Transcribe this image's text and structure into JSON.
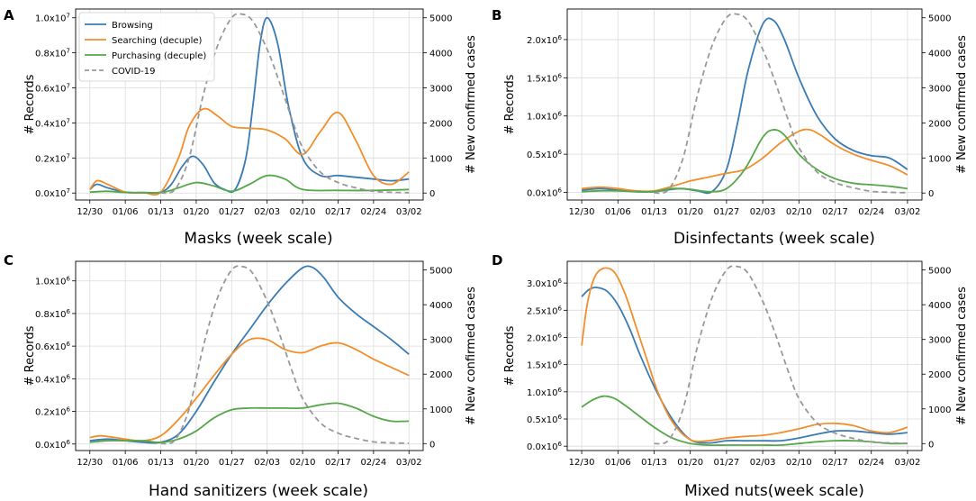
{
  "chart_data": [
    {
      "type": "line",
      "panel_letter": "A",
      "xlabel": "Masks (week scale)",
      "ylabel": "# Records",
      "y2label": "# New confirmed cases",
      "x_ticks": [
        "12/30",
        "01/06",
        "01/13",
        "01/20",
        "01/27",
        "02/03",
        "02/10",
        "02/17",
        "02/24",
        "03/02"
      ],
      "xlim": [
        -0.4,
        9.4
      ],
      "ylim": [
        -0.04,
        1.05
      ],
      "y_ticks": [
        "0.0x10^7",
        "0.2x10^7",
        "0.4x10^7",
        "0.6x10^7",
        "0.8x10^7",
        "1.0x10^7"
      ],
      "y_tick_values": [
        0.0,
        0.2,
        0.4,
        0.6,
        0.8,
        1.0
      ],
      "y_unit": "x10^7",
      "y2lim": [
        -200,
        5250
      ],
      "y2_ticks": [
        0,
        1000,
        2000,
        3000,
        4000,
        5000
      ],
      "legend": {
        "position": "top-left"
      },
      "grid": true,
      "series": [
        {
          "name": "Browsing",
          "color": "#3b7bb4",
          "axis": "left",
          "dash": false,
          "x": [
            0,
            0.2,
            0.5,
            1,
            1.5,
            2,
            2.3,
            2.6,
            2.9,
            3.2,
            3.5,
            3.8,
            4.1,
            4.4,
            4.6,
            4.8,
            5,
            5.3,
            5.6,
            6,
            6.5,
            7,
            7.5,
            8,
            8.5,
            9
          ],
          "y": [
            0.02,
            0.05,
            0.03,
            0.005,
            0.003,
            0.005,
            0.05,
            0.15,
            0.21,
            0.16,
            0.06,
            0.02,
            0.02,
            0.2,
            0.5,
            0.85,
            1.0,
            0.85,
            0.5,
            0.2,
            0.1,
            0.1,
            0.09,
            0.08,
            0.07,
            0.08
          ]
        },
        {
          "name": "Searching (decuple)",
          "color": "#f28e2b",
          "axis": "left",
          "dash": false,
          "x": [
            0,
            0.2,
            0.5,
            1,
            1.5,
            2,
            2.5,
            2.8,
            3.2,
            3.6,
            4,
            4.5,
            5,
            5.5,
            6,
            6.5,
            7,
            7.5,
            8,
            8.5,
            9
          ],
          "y": [
            0.02,
            0.07,
            0.05,
            0.005,
            0.003,
            0.005,
            0.2,
            0.38,
            0.48,
            0.44,
            0.38,
            0.37,
            0.36,
            0.31,
            0.22,
            0.35,
            0.46,
            0.3,
            0.1,
            0.05,
            0.12
          ]
        },
        {
          "name": "Purchasing (decuple)",
          "color": "#55a74a",
          "axis": "left",
          "dash": false,
          "x": [
            0,
            0.5,
            1,
            2,
            2.5,
            3,
            3.5,
            4,
            4.5,
            5,
            5.5,
            6,
            7,
            8,
            9
          ],
          "y": [
            0.005,
            0.01,
            0.003,
            0.003,
            0.03,
            0.06,
            0.04,
            0.01,
            0.05,
            0.1,
            0.08,
            0.02,
            0.015,
            0.015,
            0.02
          ]
        },
        {
          "name": "COVID-19",
          "color": "#999999",
          "axis": "right",
          "dash": true,
          "x": [
            2,
            2.4,
            2.8,
            3.2,
            3.6,
            4,
            4.3,
            4.6,
            5,
            5.3,
            5.7,
            6,
            6.5,
            7,
            7.5,
            8,
            8.5,
            9
          ],
          "y": [
            0,
            100,
            1000,
            2800,
            4200,
            5000,
            5100,
            4900,
            4100,
            3300,
            2100,
            1300,
            600,
            300,
            150,
            50,
            20,
            10
          ]
        }
      ]
    },
    {
      "type": "line",
      "panel_letter": "B",
      "xlabel": "Disinfectants (week scale)",
      "ylabel": "# Records",
      "y2label": "# New confirmed cases",
      "x_ticks": [
        "12/30",
        "01/06",
        "01/13",
        "01/20",
        "01/27",
        "02/03",
        "02/10",
        "02/17",
        "02/24",
        "03/02"
      ],
      "xlim": [
        -0.4,
        9.4
      ],
      "ylim": [
        -0.1,
        2.4
      ],
      "y_ticks": [
        "0.0x10^6",
        "0.5x10^6",
        "1.0x10^6",
        "1.5x10^6",
        "2.0x10^6"
      ],
      "y_tick_values": [
        0.0,
        0.5,
        1.0,
        1.5,
        2.0
      ],
      "y_unit": "x10^6",
      "y2lim": [
        -200,
        5250
      ],
      "y2_ticks": [
        0,
        1000,
        2000,
        3000,
        4000,
        5000
      ],
      "legend": {
        "position": "none"
      },
      "grid": true,
      "series": [
        {
          "name": "Browsing",
          "color": "#3b7bb4",
          "axis": "left",
          "dash": false,
          "x": [
            0,
            0.5,
            1,
            1.5,
            2,
            2.5,
            2.8,
            3.2,
            3.6,
            4,
            4.3,
            4.6,
            5,
            5.3,
            5.6,
            6,
            6.5,
            7,
            7.5,
            8,
            8.5,
            9
          ],
          "y": [
            0.03,
            0.05,
            0.03,
            0.01,
            0.01,
            0.04,
            0.05,
            0.02,
            0.01,
            0.3,
            0.9,
            1.6,
            2.2,
            2.25,
            2.0,
            1.5,
            1.0,
            0.7,
            0.55,
            0.48,
            0.45,
            0.3
          ]
        },
        {
          "name": "Searching (decuple)",
          "color": "#f28e2b",
          "axis": "left",
          "dash": false,
          "x": [
            0,
            0.5,
            1,
            1.5,
            2,
            2.5,
            3,
            3.5,
            4,
            4.5,
            5,
            5.5,
            6,
            6.3,
            6.6,
            7,
            7.5,
            8,
            8.5,
            9
          ],
          "y": [
            0.05,
            0.07,
            0.05,
            0.02,
            0.02,
            0.08,
            0.15,
            0.2,
            0.25,
            0.3,
            0.45,
            0.65,
            0.8,
            0.82,
            0.75,
            0.62,
            0.5,
            0.42,
            0.35,
            0.23
          ]
        },
        {
          "name": "Purchasing (decuple)",
          "color": "#55a74a",
          "axis": "left",
          "dash": false,
          "x": [
            0,
            0.5,
            1,
            1.5,
            2,
            2.5,
            3,
            3.5,
            4,
            4.5,
            5,
            5.3,
            5.6,
            6,
            6.5,
            7,
            7.5,
            8,
            8.5,
            9
          ],
          "y": [
            0.01,
            0.02,
            0.02,
            0.01,
            0.01,
            0.05,
            0.04,
            0.01,
            0.05,
            0.3,
            0.72,
            0.82,
            0.75,
            0.5,
            0.3,
            0.18,
            0.12,
            0.1,
            0.08,
            0.05
          ]
        },
        {
          "name": "COVID-19",
          "color": "#999999",
          "axis": "right",
          "dash": true,
          "x": [
            2,
            2.4,
            2.8,
            3.2,
            3.6,
            4,
            4.3,
            4.6,
            5,
            5.3,
            5.7,
            6,
            6.5,
            7,
            7.5,
            8,
            8.5,
            9
          ],
          "y": [
            0,
            100,
            1000,
            2800,
            4200,
            5000,
            5100,
            4900,
            4100,
            3300,
            2100,
            1300,
            600,
            300,
            150,
            50,
            20,
            10
          ]
        }
      ]
    },
    {
      "type": "line",
      "panel_letter": "C",
      "xlabel": "Hand sanitizers (week scale)",
      "ylabel": "# Records",
      "y2label": "# New confirmed cases",
      "x_ticks": [
        "12/30",
        "01/06",
        "01/13",
        "01/20",
        "01/27",
        "02/03",
        "02/10",
        "02/17",
        "02/24",
        "03/02"
      ],
      "xlim": [
        -0.4,
        9.4
      ],
      "ylim": [
        -0.04,
        1.12
      ],
      "y_ticks": [
        "0.0x10^6",
        "0.2x10^6",
        "0.4x10^6",
        "0.6x10^6",
        "0.8x10^6",
        "1.0x10^6"
      ],
      "y_tick_values": [
        0.0,
        0.2,
        0.4,
        0.6,
        0.8,
        1.0
      ],
      "y_unit": "x10^6",
      "y2lim": [
        -200,
        5250
      ],
      "y2_ticks": [
        0,
        1000,
        2000,
        3000,
        4000,
        5000
      ],
      "legend": {
        "position": "none"
      },
      "grid": true,
      "series": [
        {
          "name": "Browsing",
          "color": "#3b7bb4",
          "axis": "left",
          "dash": false,
          "x": [
            0,
            0.5,
            1,
            1.5,
            2,
            2.5,
            3,
            3.5,
            4,
            4.5,
            5,
            5.5,
            6,
            6.3,
            6.6,
            7,
            7.5,
            8,
            8.5,
            9
          ],
          "y": [
            0.02,
            0.03,
            0.02,
            0.01,
            0.01,
            0.06,
            0.2,
            0.38,
            0.55,
            0.7,
            0.85,
            0.98,
            1.08,
            1.08,
            1.02,
            0.9,
            0.8,
            0.72,
            0.64,
            0.55
          ]
        },
        {
          "name": "Searching (decuple)",
          "color": "#f28e2b",
          "axis": "left",
          "dash": false,
          "x": [
            0,
            0.3,
            0.7,
            1,
            1.5,
            2,
            2.5,
            3,
            3.5,
            4,
            4.5,
            5,
            5.5,
            6,
            6.5,
            7,
            7.5,
            8,
            8.5,
            9
          ],
          "y": [
            0.04,
            0.05,
            0.04,
            0.03,
            0.02,
            0.05,
            0.15,
            0.28,
            0.42,
            0.55,
            0.64,
            0.64,
            0.58,
            0.56,
            0.6,
            0.62,
            0.58,
            0.52,
            0.47,
            0.42
          ]
        },
        {
          "name": "Purchasing (decuple)",
          "color": "#55a74a",
          "axis": "left",
          "dash": false,
          "x": [
            0,
            0.5,
            1,
            1.5,
            2,
            2.5,
            3,
            3.5,
            4,
            4.5,
            5,
            5.5,
            6,
            6.5,
            7,
            7.5,
            8,
            8.5,
            9
          ],
          "y": [
            0.01,
            0.02,
            0.02,
            0.02,
            0.01,
            0.03,
            0.08,
            0.16,
            0.21,
            0.22,
            0.22,
            0.22,
            0.22,
            0.24,
            0.25,
            0.22,
            0.17,
            0.14,
            0.14
          ]
        },
        {
          "name": "COVID-19",
          "color": "#999999",
          "axis": "right",
          "dash": true,
          "x": [
            2,
            2.4,
            2.8,
            3.2,
            3.6,
            4,
            4.3,
            4.6,
            5,
            5.3,
            5.7,
            6,
            6.5,
            7,
            7.5,
            8,
            8.5,
            9
          ],
          "y": [
            0,
            100,
            1000,
            2800,
            4200,
            5000,
            5100,
            4900,
            4100,
            3300,
            2100,
            1300,
            600,
            300,
            150,
            50,
            20,
            10
          ]
        }
      ]
    },
    {
      "type": "line",
      "panel_letter": "D",
      "xlabel": "Mixed nuts(week scale)",
      "ylabel": "# Records",
      "y2label": "# New confirmed cases",
      "x_ticks": [
        "12/30",
        "01/06",
        "01/13",
        "01/20",
        "01/27",
        "02/03",
        "02/10",
        "02/17",
        "02/24",
        "03/02"
      ],
      "xlim": [
        -0.4,
        9.4
      ],
      "ylim": [
        -0.08,
        3.4
      ],
      "y_ticks": [
        "0.0x10^6",
        "0.5x10^6",
        "1.0x10^6",
        "1.5x10^6",
        "2.0x10^6",
        "2.5x10^6",
        "3.0x10^6"
      ],
      "y_tick_values": [
        0.0,
        0.5,
        1.0,
        1.5,
        2.0,
        2.5,
        3.0
      ],
      "y_unit": "x10^6",
      "y2lim": [
        -200,
        5250
      ],
      "y2_ticks": [
        0,
        1000,
        2000,
        3000,
        4000,
        5000
      ],
      "legend": {
        "position": "none"
      },
      "grid": true,
      "series": [
        {
          "name": "Browsing",
          "color": "#3b7bb4",
          "axis": "left",
          "dash": false,
          "x": [
            0,
            0.2,
            0.4,
            0.7,
            1,
            1.3,
            1.6,
            2,
            2.5,
            3,
            3.5,
            4,
            4.5,
            5,
            5.5,
            6,
            6.5,
            7,
            7.5,
            8,
            8.5,
            9
          ],
          "y": [
            2.75,
            2.88,
            2.92,
            2.85,
            2.6,
            2.2,
            1.7,
            1.1,
            0.5,
            0.12,
            0.06,
            0.1,
            0.1,
            0.1,
            0.1,
            0.15,
            0.22,
            0.28,
            0.28,
            0.25,
            0.22,
            0.25
          ]
        },
        {
          "name": "Searching (decuple)",
          "color": "#f28e2b",
          "axis": "left",
          "dash": false,
          "x": [
            0,
            0.15,
            0.35,
            0.6,
            0.9,
            1.2,
            1.5,
            1.8,
            2.1,
            2.5,
            3,
            3.5,
            4,
            4.5,
            5,
            5.5,
            6,
            6.5,
            7,
            7.5,
            8,
            8.5,
            9
          ],
          "y": [
            1.85,
            2.6,
            3.1,
            3.27,
            3.2,
            2.8,
            2.2,
            1.6,
            1.0,
            0.45,
            0.12,
            0.1,
            0.15,
            0.18,
            0.2,
            0.25,
            0.32,
            0.4,
            0.42,
            0.38,
            0.28,
            0.25,
            0.35
          ]
        },
        {
          "name": "Purchasing (decuple)",
          "color": "#55a74a",
          "axis": "left",
          "dash": false,
          "x": [
            0,
            0.3,
            0.6,
            0.9,
            1.2,
            1.5,
            2,
            2.5,
            3,
            3.5,
            4,
            4.5,
            5,
            5.5,
            6,
            6.5,
            7,
            7.5,
            8,
            8.5,
            9
          ],
          "y": [
            0.72,
            0.85,
            0.92,
            0.88,
            0.75,
            0.6,
            0.35,
            0.15,
            0.05,
            0.02,
            0.02,
            0.02,
            0.02,
            0.02,
            0.05,
            0.08,
            0.1,
            0.1,
            0.08,
            0.05,
            0.05
          ]
        },
        {
          "name": "COVID-19",
          "color": "#999999",
          "axis": "right",
          "dash": true,
          "x": [
            2,
            2.4,
            2.8,
            3.2,
            3.6,
            4,
            4.3,
            4.6,
            5,
            5.3,
            5.7,
            6,
            6.5,
            7,
            7.5,
            8,
            8.5,
            9
          ],
          "y": [
            0,
            100,
            1000,
            2800,
            4200,
            5000,
            5100,
            4900,
            4100,
            3300,
            2100,
            1300,
            600,
            300,
            150,
            50,
            20,
            10
          ]
        }
      ]
    }
  ]
}
